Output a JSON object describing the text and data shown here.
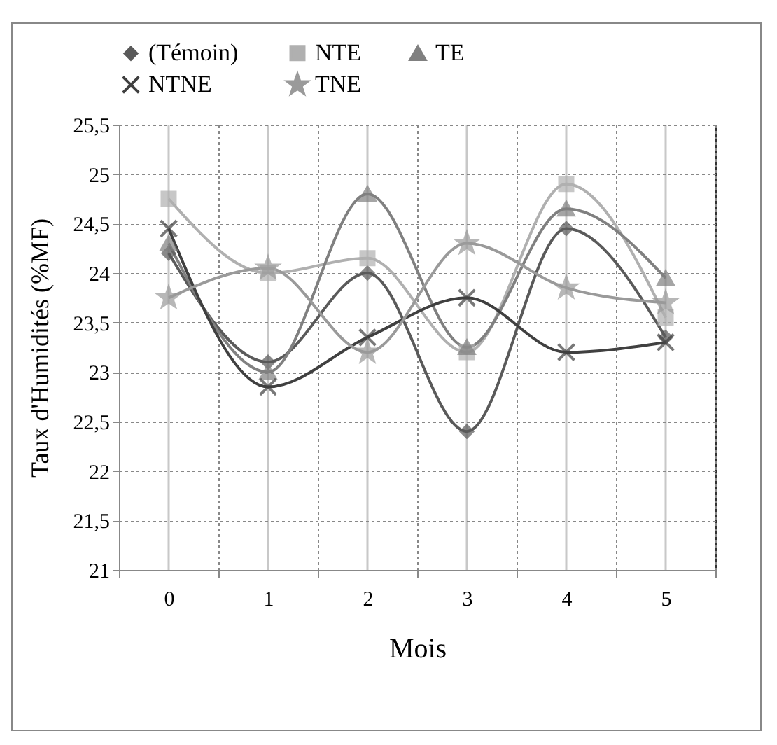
{
  "chart_data": {
    "type": "line",
    "xlabel": "Mois",
    "ylabel": "Taux d'Humidités (%MF)",
    "categories": [
      "0",
      "1",
      "2",
      "3",
      "4",
      "5"
    ],
    "series": [
      {
        "name": "(Témoin)",
        "color": "#5a5a5a",
        "marker": "diamond",
        "values": [
          24.2,
          23.1,
          24.0,
          22.4,
          24.45,
          23.35
        ]
      },
      {
        "name": "NTE",
        "color": "#b0b0b0",
        "marker": "square",
        "values": [
          24.75,
          24.0,
          24.15,
          23.2,
          24.9,
          23.55
        ]
      },
      {
        "name": "TE",
        "color": "#808080",
        "marker": "triangle",
        "values": [
          24.3,
          23.0,
          24.8,
          23.25,
          24.65,
          23.95
        ]
      },
      {
        "name": "NTNE",
        "color": "#404040",
        "marker": "cross",
        "values": [
          24.45,
          22.85,
          23.35,
          23.75,
          23.2,
          23.3
        ]
      },
      {
        "name": "TNE",
        "color": "#9a9a9a",
        "marker": "star",
        "values": [
          23.75,
          24.05,
          23.2,
          24.3,
          23.85,
          23.7
        ]
      }
    ],
    "ylim": [
      21,
      25.5
    ],
    "yticks": [
      21,
      {
        "value": 21.5,
        "label": "21,5"
      },
      22,
      {
        "value": 22.5,
        "label": "22,5"
      },
      23,
      {
        "value": 23.5,
        "label": "23,5"
      },
      24,
      {
        "value": 24.5,
        "label": "24,5"
      },
      25,
      {
        "value": 25.5,
        "label": "25,5"
      }
    ],
    "grid": true,
    "legend": "top",
    "line_style": "solid"
  }
}
